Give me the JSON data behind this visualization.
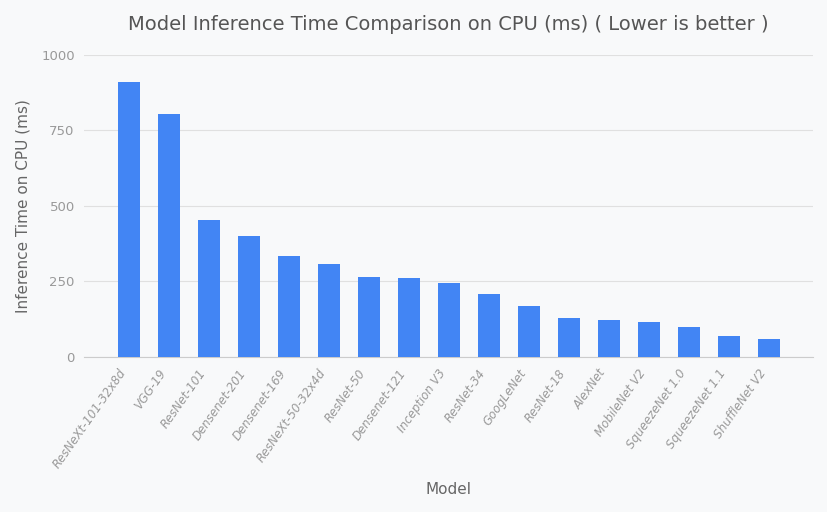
{
  "title": "Model Inference Time Comparison on CPU (ms) ( Lower is better )",
  "xlabel": "Model",
  "ylabel": "Inference Time on CPU (ms)",
  "categories": [
    "ResNeXt-101-32x8d",
    "VGG-19",
    "ResNet-101",
    "Densenet-201",
    "Densenet-169",
    "ResNeXt-50-32x4d",
    "ResNet-50",
    "Densenet-121",
    "Inception V3",
    "ResNet-34",
    "GoogLeNet",
    "ResNet-18",
    "AlexNet",
    "MobileNet V2",
    "SqueezeNet 1.0",
    "SqueezeNet 1.1",
    "ShuffleNet V2"
  ],
  "values": [
    910,
    805,
    455,
    400,
    335,
    308,
    265,
    260,
    245,
    210,
    168,
    128,
    122,
    115,
    100,
    68,
    60
  ],
  "bar_color": "#4285f4",
  "background_color": "#f8f9fa",
  "grid_color": "#e0e0e0",
  "title_color": "#555555",
  "label_color": "#666666",
  "tick_color": "#999999",
  "ylim": [
    0,
    1000
  ],
  "yticks": [
    0,
    250,
    500,
    750,
    1000
  ],
  "title_fontsize": 14,
  "axis_label_fontsize": 11,
  "tick_fontsize": 8.5
}
